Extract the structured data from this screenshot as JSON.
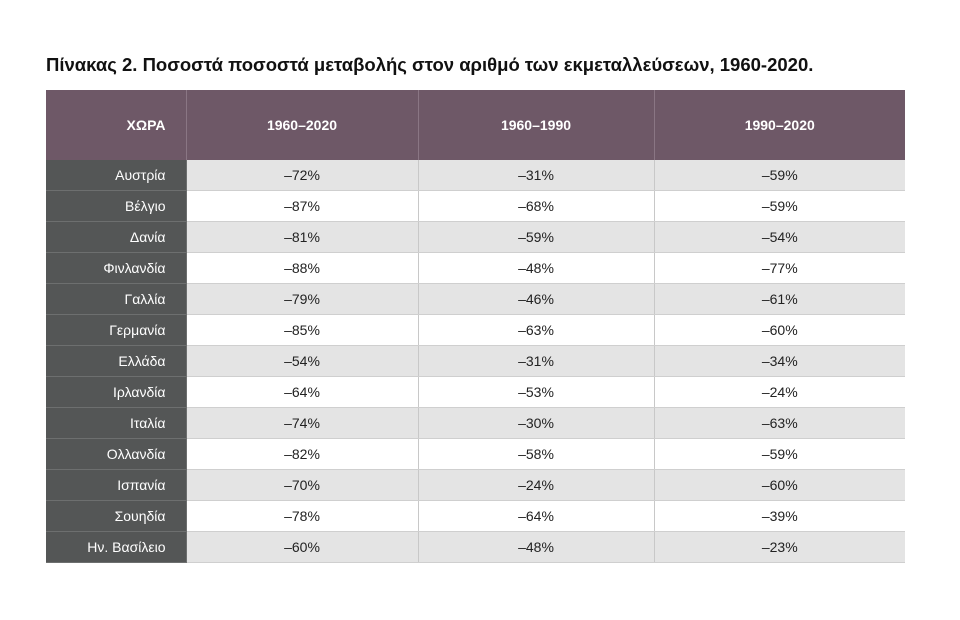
{
  "title": "Πίνακας 2. Ποσοστά ποσοστά μεταβολής στον αριθμό των εκμεταλλεύσεων, 1960-2020.",
  "colors": {
    "header_background": "#6e5867",
    "country_column_background": "#545656",
    "stripe_background": "#e4e4e4"
  },
  "table": {
    "headers": [
      "ΧΩΡΑ",
      "1960–2020",
      "1960–1990",
      "1990–2020"
    ],
    "rows": [
      {
        "country": "Αυστρία",
        "v1": "–72%",
        "v2": "–31%",
        "v3": "–59%"
      },
      {
        "country": "Βέλγιο",
        "v1": "–87%",
        "v2": "–68%",
        "v3": "–59%"
      },
      {
        "country": "Δανία",
        "v1": "–81%",
        "v2": "–59%",
        "v3": "–54%"
      },
      {
        "country": "Φινλανδία",
        "v1": "–88%",
        "v2": "–48%",
        "v3": "–77%"
      },
      {
        "country": "Γαλλία",
        "v1": "–79%",
        "v2": "–46%",
        "v3": "–61%"
      },
      {
        "country": "Γερμανία",
        "v1": "–85%",
        "v2": "–63%",
        "v3": "–60%"
      },
      {
        "country": "Ελλάδα",
        "v1": "–54%",
        "v2": "–31%",
        "v3": "–34%"
      },
      {
        "country": "Ιρλανδία",
        "v1": "–64%",
        "v2": "–53%",
        "v3": "–24%"
      },
      {
        "country": "Ιταλία",
        "v1": "–74%",
        "v2": "–30%",
        "v3": "–63%"
      },
      {
        "country": "Ολλανδία",
        "v1": "–82%",
        "v2": "–58%",
        "v3": "–59%"
      },
      {
        "country": "Ισπανία",
        "v1": "–70%",
        "v2": "–24%",
        "v3": "–60%"
      },
      {
        "country": "Σουηδία",
        "v1": "–78%",
        "v2": "–64%",
        "v3": "–39%"
      },
      {
        "country": "Ην. Βασίλειο",
        "v1": "–60%",
        "v2": "–48%",
        "v3": "–23%"
      }
    ]
  }
}
